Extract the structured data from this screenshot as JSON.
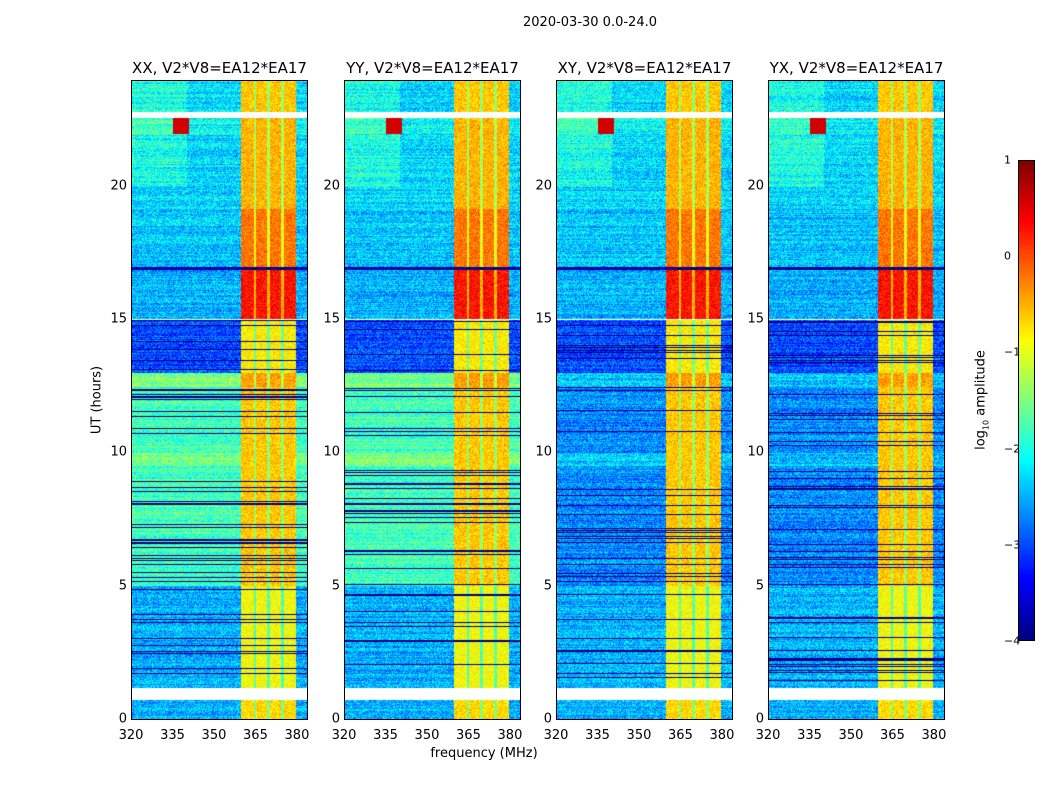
{
  "chart_data": {
    "type": "heatmap",
    "title": "2020-03-30 0.0-24.0",
    "xlabel": "frequency (MHz)",
    "ylabel": "UT (hours)",
    "xlim": [
      320,
      384
    ],
    "ylim": [
      0,
      24
    ],
    "xticks": [
      "320",
      "335",
      "350",
      "365",
      "380"
    ],
    "xtick_values": [
      320,
      335,
      350,
      365,
      380
    ],
    "yticks": [
      "0",
      "5",
      "10",
      "15",
      "20"
    ],
    "ytick_values": [
      0,
      5,
      10,
      15,
      20
    ],
    "panels": [
      {
        "title": "XX, V2*V8=EA12*EA17",
        "cross_offset": 0
      },
      {
        "title": "YY, V2*V8=EA12*EA17",
        "cross_offset": 0
      },
      {
        "title": "XY, V2*V8=EA12*EA17",
        "cross_offset": -0.9
      },
      {
        "title": "YX, V2*V8=EA12*EA17",
        "cross_offset": -0.9
      }
    ],
    "bright_band_mhz": [
      360,
      380
    ],
    "band_dips_mhz": [
      365,
      370,
      375
    ],
    "time_blocks": [
      {
        "start": 0.0,
        "end": 0.7,
        "bg": -2.5,
        "band": -0.7
      },
      {
        "start": 0.7,
        "end": 1.15,
        "flagged": true
      },
      {
        "start": 1.15,
        "end": 5.0,
        "bg": -2.5,
        "band": -0.9,
        "lines": true
      },
      {
        "start": 5.0,
        "end": 9.5,
        "bg": -1.8,
        "band": -0.6,
        "lines": true,
        "cross": true
      },
      {
        "start": 9.5,
        "end": 10.0,
        "bg": -1.5,
        "band": -0.6,
        "cross": true
      },
      {
        "start": 10.0,
        "end": 12.5,
        "bg": -1.8,
        "band": -0.6,
        "lines": true,
        "cross": true
      },
      {
        "start": 12.5,
        "end": 13.0,
        "bg": -1.5,
        "band": -0.4,
        "cross": true
      },
      {
        "start": 13.0,
        "end": 15.0,
        "bg": -3.0,
        "band": -0.8,
        "lines": true
      },
      {
        "start": 15.0,
        "end": 15.06,
        "flagged": true
      },
      {
        "start": 15.06,
        "end": 16.9,
        "bg": -2.5,
        "band": 0.3
      },
      {
        "start": 16.9,
        "end": 17.0,
        "bg": -4.0,
        "band": -4.0
      },
      {
        "start": 17.0,
        "end": 19.2,
        "bg": -2.4,
        "band": -0.2
      },
      {
        "start": 19.2,
        "end": 22.0,
        "bg": -2.3,
        "band": -0.5
      },
      {
        "start": 22.0,
        "end": 22.6,
        "bg": -2.1,
        "band": -0.5,
        "rfi": true
      },
      {
        "start": 22.6,
        "end": 22.85,
        "flagged": true
      },
      {
        "start": 22.85,
        "end": 24.0,
        "bg": -2.3,
        "band": -0.6
      }
    ],
    "colorbar": {
      "label": "log10 amplitude",
      "label_main": "log",
      "label_sub": "10",
      "label_rest": " amplitude",
      "range": [
        -4,
        1
      ],
      "ticks": [
        "1",
        "0",
        "−1",
        "−2",
        "−3",
        "−4"
      ],
      "tick_values": [
        1,
        0,
        -1,
        -2,
        -3,
        -4
      ],
      "colormap": "jet"
    }
  }
}
